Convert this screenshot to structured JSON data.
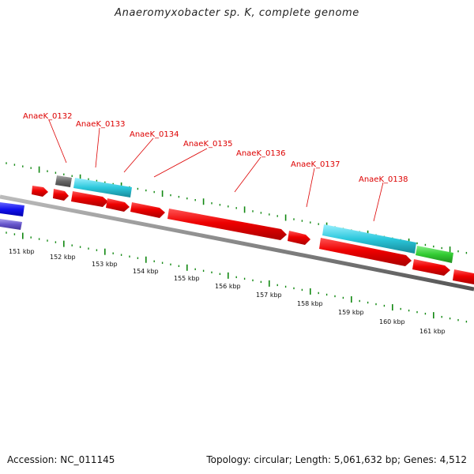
{
  "header": {
    "title": "Anaeromyxobacter sp. K, complete genome"
  },
  "footer": {
    "accession": "Accession: NC_011145",
    "summary": "Topology: circular; Length: 5,061,632 bp; Genes: 4,512"
  },
  "colors": {
    "gene_label": "#dd0000",
    "backbone": "#888888",
    "tick": "#118811",
    "cds_red": "#ee0000",
    "cyan": "#2cc8dc",
    "gray": "#666666",
    "green": "#33cc33",
    "blue": "#1111ee",
    "purple": "#6655cc"
  },
  "gene_labels": [
    "AnaeK_0132",
    "AnaeK_0133",
    "AnaeK_0134",
    "AnaeK_0135",
    "AnaeK_0136",
    "AnaeK_0137",
    "AnaeK_0138"
  ],
  "kbp_labels": [
    "151 kbp",
    "152 kbp",
    "153 kbp",
    "154 kbp",
    "155 kbp",
    "156 kbp",
    "157 kbp",
    "158 kbp",
    "159 kbp",
    "160 kbp",
    "161 kbp"
  ]
}
